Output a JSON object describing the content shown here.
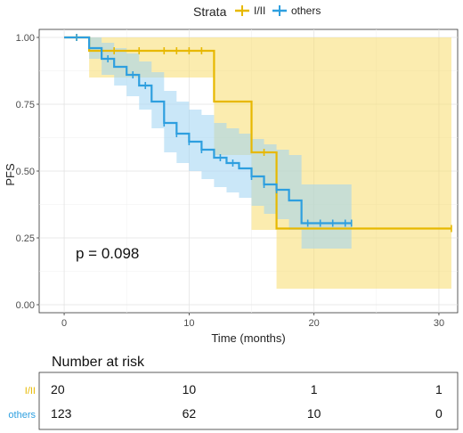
{
  "chart_data": {
    "type": "line",
    "subtype": "kaplan-meier",
    "ylabel": "PFS",
    "xlabel": "Time (months)",
    "xlim": [
      -2,
      31.5
    ],
    "ylim": [
      -0.03,
      1.03
    ],
    "x_ticks": [
      0,
      10,
      20,
      30
    ],
    "y_ticks": [
      0.0,
      0.25,
      0.5,
      0.75,
      1.0
    ],
    "y_tick_labels": [
      "0.00",
      "0.25",
      "0.50",
      "0.75",
      "1.00"
    ],
    "grid": true,
    "legend": {
      "title": "Strata",
      "position": "top"
    },
    "annotation": "p = 0.098",
    "series": [
      {
        "name": "I/II",
        "color": "#E7B800",
        "band_color": "#F7DD6E",
        "steps": [
          [
            0,
            1.0
          ],
          [
            2,
            0.95
          ],
          [
            12,
            0.76
          ],
          [
            15,
            0.57
          ],
          [
            17,
            0.285
          ],
          [
            31,
            0.285
          ]
        ],
        "upper": [
          [
            0,
            1.0
          ],
          [
            2,
            1.0
          ],
          [
            12,
            1.0
          ],
          [
            15,
            1.0
          ],
          [
            17,
            1.0
          ],
          [
            31,
            1.0
          ]
        ],
        "lower": [
          [
            0,
            1.0
          ],
          [
            2,
            0.85
          ],
          [
            12,
            0.56
          ],
          [
            15,
            0.28
          ],
          [
            17,
            0.06
          ],
          [
            31,
            0.06
          ]
        ],
        "censor_x": [
          1,
          4,
          6,
          8,
          9,
          10,
          11,
          16,
          31
        ]
      },
      {
        "name": "others",
        "color": "#2E9FDF",
        "band_color": "#9FD3F3",
        "steps": [
          [
            0,
            1.0
          ],
          [
            2,
            0.96
          ],
          [
            3,
            0.92
          ],
          [
            4,
            0.89
          ],
          [
            5,
            0.86
          ],
          [
            6,
            0.82
          ],
          [
            7,
            0.76
          ],
          [
            8,
            0.68
          ],
          [
            9,
            0.64
          ],
          [
            10,
            0.61
          ],
          [
            11,
            0.58
          ],
          [
            12,
            0.55
          ],
          [
            13,
            0.53
          ],
          [
            14,
            0.51
          ],
          [
            15,
            0.48
          ],
          [
            16,
            0.45
          ],
          [
            17,
            0.43
          ],
          [
            18,
            0.39
          ],
          [
            19,
            0.305
          ],
          [
            23,
            0.305
          ]
        ],
        "upper": [
          [
            0,
            1.0
          ],
          [
            2,
            1.0
          ],
          [
            3,
            0.98
          ],
          [
            4,
            0.96
          ],
          [
            5,
            0.94
          ],
          [
            6,
            0.91
          ],
          [
            7,
            0.87
          ],
          [
            8,
            0.8
          ],
          [
            9,
            0.76
          ],
          [
            10,
            0.73
          ],
          [
            11,
            0.71
          ],
          [
            12,
            0.68
          ],
          [
            13,
            0.66
          ],
          [
            14,
            0.64
          ],
          [
            15,
            0.62
          ],
          [
            16,
            0.6
          ],
          [
            17,
            0.58
          ],
          [
            18,
            0.56
          ],
          [
            19,
            0.45
          ],
          [
            23,
            0.45
          ]
        ],
        "lower": [
          [
            0,
            1.0
          ],
          [
            2,
            0.92
          ],
          [
            3,
            0.86
          ],
          [
            4,
            0.82
          ],
          [
            5,
            0.78
          ],
          [
            6,
            0.73
          ],
          [
            7,
            0.66
          ],
          [
            8,
            0.57
          ],
          [
            9,
            0.53
          ],
          [
            10,
            0.5
          ],
          [
            11,
            0.47
          ],
          [
            12,
            0.44
          ],
          [
            13,
            0.42
          ],
          [
            14,
            0.4
          ],
          [
            15,
            0.37
          ],
          [
            16,
            0.34
          ],
          [
            17,
            0.32
          ],
          [
            18,
            0.28
          ],
          [
            19,
            0.21
          ],
          [
            23,
            0.21
          ]
        ],
        "censor_x": [
          1,
          3.5,
          5.5,
          6.5,
          8,
          9,
          10,
          11,
          12.5,
          13.5,
          15,
          16,
          17,
          19.5,
          20.5,
          21.5,
          22.5,
          23
        ]
      }
    ]
  },
  "risk_table": {
    "title": "Number at risk",
    "times": [
      0,
      10,
      20,
      30
    ],
    "rows": [
      {
        "label": "I/II",
        "color": "#E7B800",
        "values": [
          "20",
          "10",
          "1",
          "1"
        ]
      },
      {
        "label": "others",
        "color": "#2E9FDF",
        "values": [
          "123",
          "62",
          "10",
          "0"
        ]
      }
    ]
  }
}
